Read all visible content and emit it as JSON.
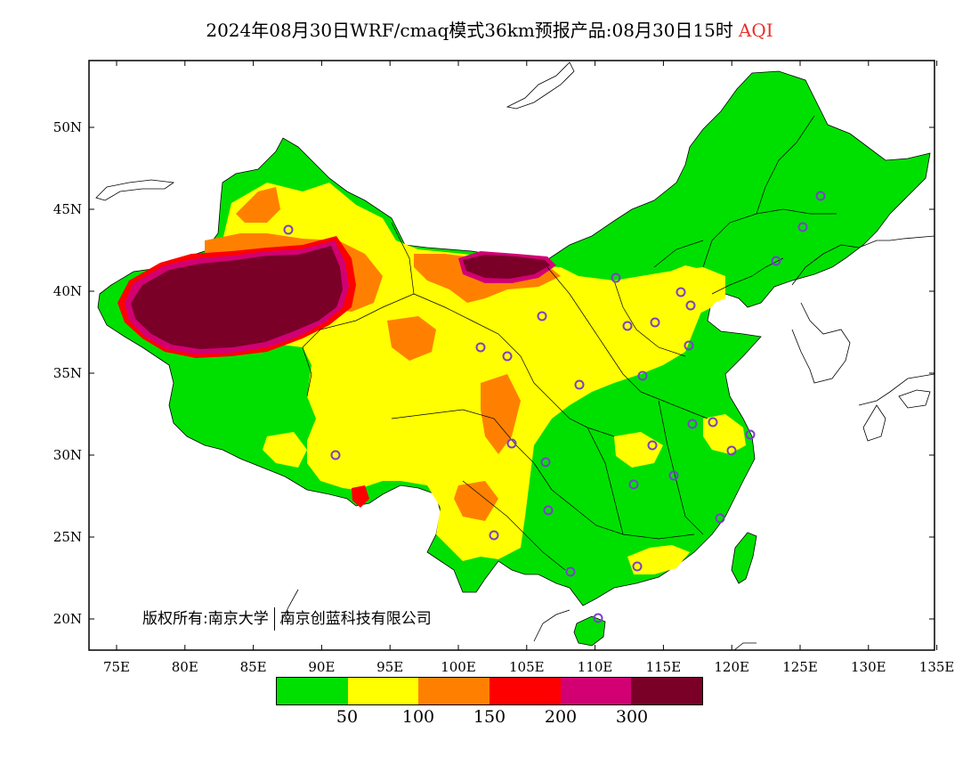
{
  "title": {
    "main": "2024年08月30日WRF/cmaq模式36km预报产品:08月30日15时",
    "variable": "AQI",
    "variable_color": "#e8312d"
  },
  "copyright": {
    "owner": "版权所有:南京大学",
    "partner": "南京创蓝科技有限公司"
  },
  "axes": {
    "x_ticks": [
      "75E",
      "80E",
      "85E",
      "90E",
      "95E",
      "100E",
      "105E",
      "110E",
      "115E",
      "120E",
      "125E",
      "130E",
      "135E"
    ],
    "y_ticks": [
      "50N",
      "45N",
      "40N",
      "35N",
      "30N",
      "25N",
      "20N"
    ]
  },
  "legend": {
    "colors": [
      "#00e000",
      "#ffff00",
      "#ff8000",
      "#ff0000",
      "#d20073",
      "#7a0028"
    ],
    "labels": [
      "50",
      "100",
      "150",
      "200",
      "300"
    ]
  },
  "sites_color": "#7b40c8"
}
